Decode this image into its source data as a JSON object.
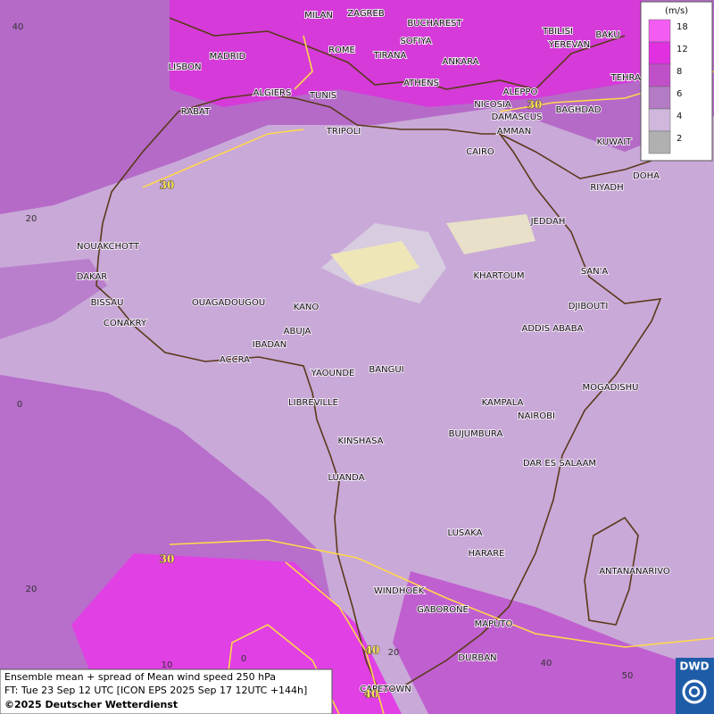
{
  "map": {
    "cities": [
      "MILAN",
      "ZAGREB",
      "BUCHAREST",
      "TBILISI",
      "BAKU",
      "MADRID",
      "ROME",
      "SOFIYA",
      "YEREVAN",
      "LISBON",
      "TIRANA",
      "ANKARA",
      "TEHRAN",
      "ALGIERS",
      "TUNIS",
      "ATHENS",
      "ALEPPO",
      "RABAT",
      "NICOSIA",
      "DAMASCUS",
      "BAGHDAD",
      "TRIPOLI",
      "AMMAN",
      "KUWAIT",
      "CAIRO",
      "DOHA",
      "RIYADH",
      "JEDDAH",
      "NOUAKCHOTT",
      "SAN'A",
      "KHARTOUM",
      "DAKAR",
      "BISSAU",
      "OUAGADOUGOU",
      "KANO",
      "DJIBOUTI",
      "CONAKRY",
      "ABUJA",
      "ADDIS ABABA",
      "IBADAN",
      "ACCRA",
      "BANGUI",
      "YAOUNDE",
      "MOGADISHU",
      "LIBREVILLE",
      "KAMPALA",
      "NAIROBI",
      "BUJUMBURA",
      "KINSHASA",
      "DAR ES SALAAM",
      "LUANDA",
      "LUSAKA",
      "HARARE",
      "ANTANANARIVO",
      "WINDHOEK",
      "GABORONE",
      "MAPUTO",
      "DURBAN",
      "CAPETOWN"
    ],
    "legend": {
      "unit": "(m/s)",
      "levels": [
        18,
        12,
        8,
        6,
        4,
        2
      ]
    },
    "contour_labels": [
      40,
      30,
      30,
      30,
      40,
      40
    ],
    "lat_labels": [
      40,
      20,
      0,
      20
    ],
    "lon_labels": [
      10,
      0,
      20,
      40,
      50
    ],
    "logo": "DWD"
  },
  "caption": {
    "line1": "Ensemble mean + spread of Mean wind speed 250 hPa",
    "line2": "FT: Tue 23 Sep 12 UTC [ICON EPS 2025 Sep 17 12UTC +144h]",
    "line3": "©2025 Deutscher Wetterdienst"
  }
}
